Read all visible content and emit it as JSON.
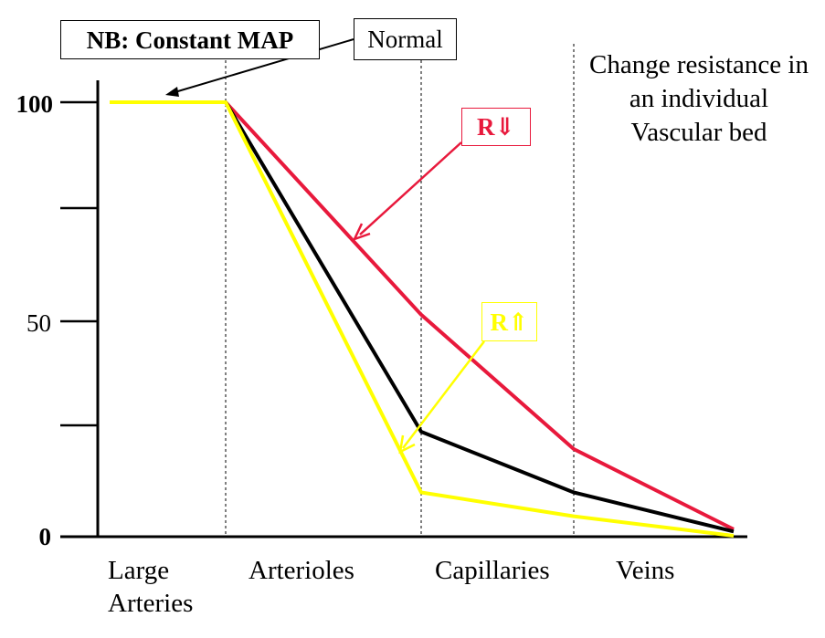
{
  "chart_data": {
    "type": "line",
    "categories": [
      "Large\nArteries",
      "Arterioles",
      "Capillaries",
      "Veins"
    ],
    "ytick_labels": [
      "100",
      "50",
      "0"
    ],
    "ylim": [
      0,
      100
    ],
    "grid": false,
    "series": [
      {
        "name": "Normal",
        "color": "#000000",
        "points": [
          [
            0.0,
            100
          ],
          [
            0.5,
            100
          ],
          [
            1.5,
            24
          ],
          [
            2.3,
            10
          ],
          [
            3.3,
            1
          ]
        ]
      },
      {
        "name": "R⇓",
        "color": "#e8193c",
        "points": [
          [
            0.5,
            100
          ],
          [
            1.5,
            51
          ],
          [
            2.3,
            20
          ],
          [
            3.3,
            1.5
          ]
        ]
      },
      {
        "name": "R⇑",
        "color": "#ffff00",
        "points": [
          [
            0.0,
            100
          ],
          [
            0.5,
            100
          ],
          [
            1.5,
            10
          ],
          [
            2.3,
            4.5
          ],
          [
            3.3,
            0
          ]
        ]
      }
    ]
  },
  "labels": {
    "title": "NB: Constant MAP",
    "normal": "Normal",
    "r_down": "R⇓",
    "r_up": "R⇑",
    "note": "Change resistance in an individual Vascular bed"
  },
  "x_categories": [
    {
      "line1": "Large",
      "line2": "Arteries"
    },
    {
      "line1": "Arterioles",
      "line2": ""
    },
    {
      "line1": "Capillaries",
      "line2": ""
    },
    {
      "line1": "Veins",
      "line2": ""
    }
  ]
}
